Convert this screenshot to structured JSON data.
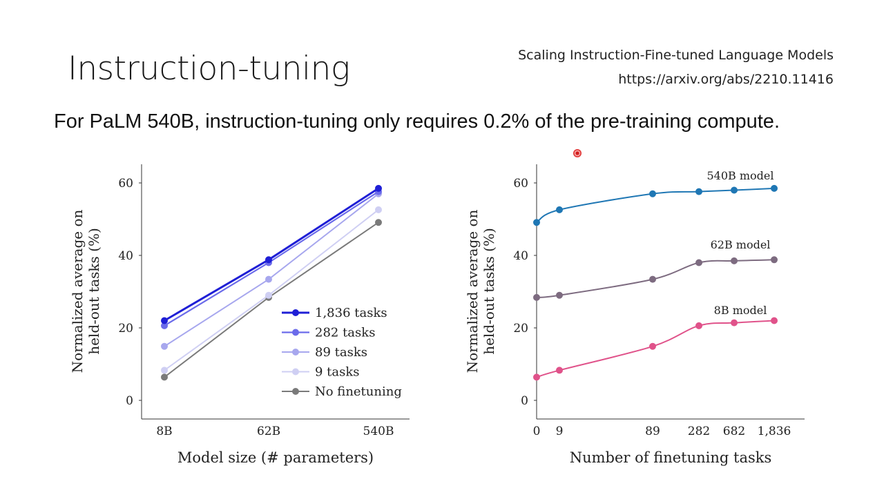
{
  "slide": {
    "title": "Instruction-tuning",
    "reference_title": "Scaling Instruction-Fine-tuned Language Models",
    "reference_url": "https://arxiv.org/abs/2210.11416",
    "subtitle": "For PaLM 540B, instruction-tuning only requires 0.2% of the pre-training compute."
  },
  "chart_data": [
    {
      "type": "line",
      "categories": [
        "8B",
        "62B",
        "540B"
      ],
      "xlabel": "Model size (# parameters)",
      "ylabel_lines": [
        "Normalized average on",
        "held-out tasks (%)"
      ],
      "ylim": [
        -5,
        65
      ],
      "yticks": [
        0,
        20,
        40,
        60
      ],
      "grid": false,
      "legend_position": "bottom-right",
      "series": [
        {
          "name": "1,836 tasks",
          "values": [
            22.0,
            38.8,
            58.5
          ],
          "color": "#1f1fd6",
          "width": 3
        },
        {
          "name": "282 tasks",
          "values": [
            20.6,
            38.0,
            57.6
          ],
          "color": "#6b6bea",
          "width": 2.2
        },
        {
          "name": "89 tasks",
          "values": [
            14.9,
            33.4,
            57.0
          ],
          "color": "#a7a7ee",
          "width": 2
        },
        {
          "name": "9 tasks",
          "values": [
            8.3,
            29.0,
            52.6
          ],
          "color": "#cfcff3",
          "width": 2
        },
        {
          "name": "No finetuning",
          "values": [
            6.4,
            28.4,
            49.1
          ],
          "color": "#7a7a7a",
          "width": 2
        }
      ]
    },
    {
      "type": "line",
      "x_categories": [
        "0",
        "9",
        "89",
        "282",
        "682",
        "1,836"
      ],
      "xlabel": "Number of finetuning tasks",
      "ylabel_lines": [
        "Normalized average on",
        "held-out tasks (%)"
      ],
      "ylim": [
        -5,
        65
      ],
      "yticks": [
        0,
        20,
        40,
        60
      ],
      "grid": false,
      "series": [
        {
          "name": "540B model",
          "values": [
            49.1,
            52.6,
            57.0,
            57.6,
            58.0,
            58.5
          ],
          "color": "#1f77b4"
        },
        {
          "name": "62B model",
          "values": [
            28.4,
            29.0,
            33.4,
            38.0,
            38.5,
            38.8
          ],
          "color": "#7d6b80"
        },
        {
          "name": "8B model",
          "values": [
            6.4,
            8.3,
            14.9,
            20.6,
            21.4,
            22.0
          ],
          "color": "#e0528a"
        }
      ]
    }
  ]
}
